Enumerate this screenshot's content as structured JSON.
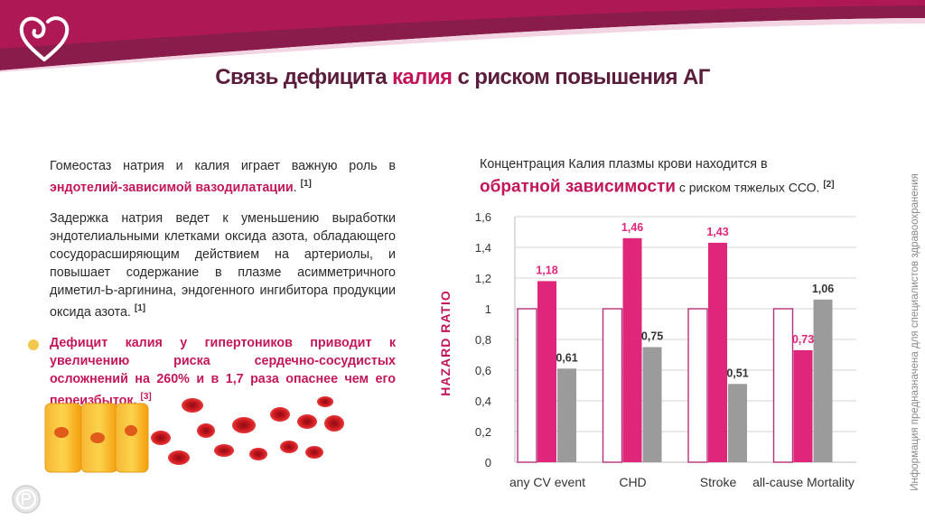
{
  "title": {
    "part1": "Связь дефицита ",
    "part2": "калия",
    "part3": " с риском повышения АГ"
  },
  "left": {
    "p1": {
      "text": "Гомеостаз натрия и калия играет важную роль в ",
      "highlight": "эндотелий-зависимой вазодилатации",
      "end": ".",
      "ref": "[1]"
    },
    "p2": {
      "text": "Задержка натрия ведет к уменьшению выработки эндотелиальными клетками оксида азота, обладающего сосудорасширяющим действием на артериолы, и повышает содержание в плазме асимметричного диметил-Ь-аргинина, эндогенного ингибитора продукции оксида азота.",
      "ref": "[1]"
    },
    "p3": {
      "text": "Дефицит калия у гипертоников приводит к увеличению риска сердечно-сосудистых осложнений на 260% и в 1,7 раза опаснее чем его переизбыток.",
      "ref": "[3]"
    }
  },
  "right": {
    "line1": "Концентрация Калия плазмы крови находится в",
    "big": "обратной зависимости",
    "rest": " с риском тяжелых ССО.",
    "ref": "[2]"
  },
  "side_note": "Информация предназначена для специалистов здравоохранения",
  "colors": {
    "pink": "#e0267a",
    "gray": "#9b9b9b",
    "ref_bar_border": "#b5307e",
    "title_dark": "#5a1d3b",
    "title_accent": "#c2185b"
  },
  "chart_data": {
    "type": "bar",
    "ylabel": "HAZARD RATIO",
    "ylim": [
      0,
      1.6
    ],
    "yticks": [
      "0",
      "0,2",
      "0,4",
      "0,6",
      "0,8",
      "1",
      "1,2",
      "1,4",
      "1,6"
    ],
    "categories": [
      "any CV event",
      "CHD",
      "Stroke",
      "all-cause Mortality"
    ],
    "series": [
      {
        "values": [
          1,
          1,
          1,
          1
        ],
        "labels": [
          "",
          "",
          "",
          ""
        ],
        "color": "#ffffff",
        "stroke": "#b5307e"
      },
      {
        "values": [
          1.18,
          1.46,
          1.43,
          0.73
        ],
        "labels": [
          "1,18",
          "1,46",
          "1,43",
          "0,73"
        ],
        "color": "#e0267a"
      },
      {
        "values": [
          0.61,
          0.75,
          0.51,
          1.06
        ],
        "labels": [
          "0,61",
          "0,75",
          "0,51",
          "1,06"
        ],
        "color": "#9b9b9b"
      }
    ]
  }
}
